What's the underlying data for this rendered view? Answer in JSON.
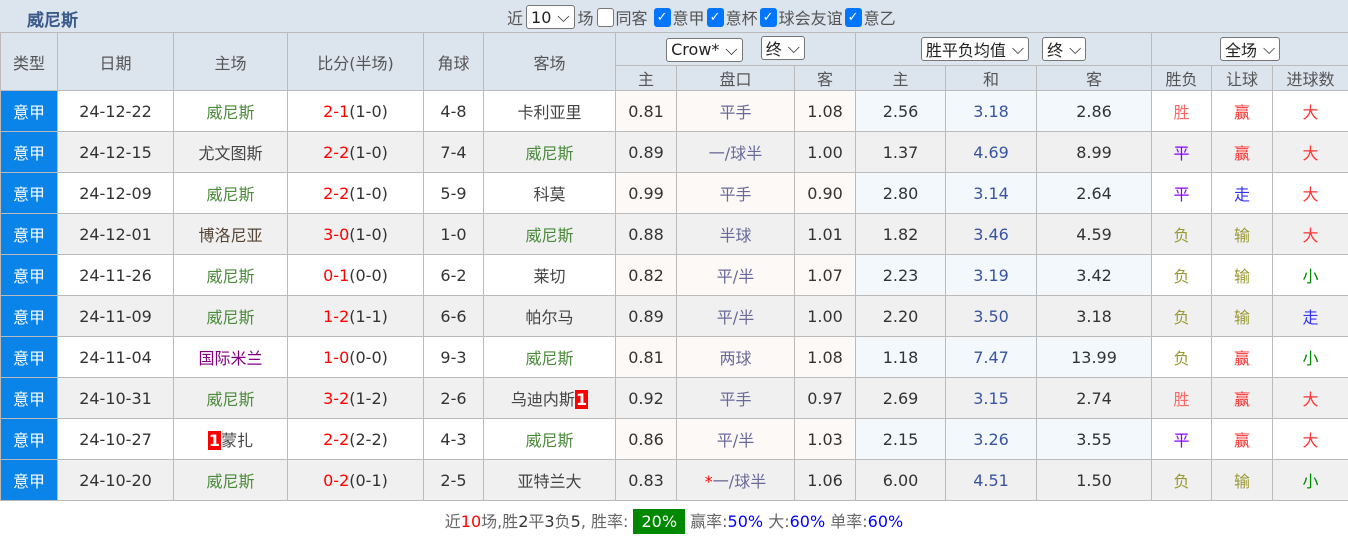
{
  "title": "威尼斯",
  "filters": {
    "near_label": "近",
    "count": "10",
    "count_suffix": "场",
    "items": [
      {
        "label": "同客",
        "checked": false
      },
      {
        "label": "意甲",
        "checked": true
      },
      {
        "label": "意杯",
        "checked": true
      },
      {
        "label": "球会友谊",
        "checked": true
      },
      {
        "label": "意乙",
        "checked": true
      }
    ]
  },
  "headers": {
    "type": "类型",
    "date": "日期",
    "home": "主场",
    "score": "比分(半场)",
    "corner": "角球",
    "away": "客场",
    "company": "Crow*",
    "company_stage": "终",
    "avg": "胜平负均值",
    "avg_stage": "终",
    "scope": "全场",
    "h_home": "主",
    "h_line": "盘口",
    "h_away": "客",
    "a_home": "主",
    "a_draw": "和",
    "a_away": "客",
    "res": "胜负",
    "hc": "让球",
    "ou": "进球数"
  },
  "colors": {
    "accent": "#0a84e8",
    "win": "#ff6666",
    "draw": "#8800ff",
    "lose": "#999933",
    "big": "#ff3333",
    "small": "#008800",
    "walk": "#3333ff"
  },
  "rows": [
    {
      "type": "意甲",
      "date": "24-12-22",
      "home": "威尼斯",
      "hcard": "",
      "score": "2-1",
      "half": "(1-0)",
      "corner": "4-8",
      "away": "卡利亚里",
      "acard": "",
      "oh": "0.81",
      "line": "平手",
      "star": "",
      "oa": "1.08",
      "ah": "2.56",
      "ad": "3.18",
      "aa": "2.86",
      "res": "胜",
      "hc": "赢",
      "ou": "大"
    },
    {
      "type": "意甲",
      "date": "24-12-15",
      "home": "尤文图斯",
      "hcard": "",
      "score": "2-2",
      "half": "(1-0)",
      "corner": "7-4",
      "away": "威尼斯",
      "acard": "",
      "oh": "0.89",
      "line": "一/球半",
      "star": "",
      "oa": "1.00",
      "ah": "1.37",
      "ad": "4.69",
      "aa": "8.99",
      "res": "平",
      "hc": "赢",
      "ou": "大"
    },
    {
      "type": "意甲",
      "date": "24-12-09",
      "home": "威尼斯",
      "hcard": "",
      "score": "2-2",
      "half": "(1-0)",
      "corner": "5-9",
      "away": "科莫",
      "acard": "",
      "oh": "0.99",
      "line": "平手",
      "star": "",
      "oa": "0.90",
      "ah": "2.80",
      "ad": "3.14",
      "aa": "2.64",
      "res": "平",
      "hc": "走",
      "ou": "大"
    },
    {
      "type": "意甲",
      "date": "24-12-01",
      "home": "博洛尼亚",
      "hcard": "",
      "score": "3-0",
      "half": "(1-0)",
      "corner": "1-0",
      "away": "威尼斯",
      "acard": "",
      "oh": "0.88",
      "line": "半球",
      "star": "",
      "oa": "1.01",
      "ah": "1.82",
      "ad": "3.46",
      "aa": "4.59",
      "res": "负",
      "hc": "输",
      "ou": "大"
    },
    {
      "type": "意甲",
      "date": "24-11-26",
      "home": "威尼斯",
      "hcard": "",
      "score": "0-1",
      "half": "(0-0)",
      "corner": "6-2",
      "away": "莱切",
      "acard": "",
      "oh": "0.82",
      "line": "平/半",
      "star": "",
      "oa": "1.07",
      "ah": "2.23",
      "ad": "3.19",
      "aa": "3.42",
      "res": "负",
      "hc": "输",
      "ou": "小"
    },
    {
      "type": "意甲",
      "date": "24-11-09",
      "home": "威尼斯",
      "hcard": "",
      "score": "1-2",
      "half": "(1-1)",
      "corner": "6-6",
      "away": "帕尔马",
      "acard": "",
      "oh": "0.89",
      "line": "平/半",
      "star": "",
      "oa": "1.00",
      "ah": "2.20",
      "ad": "3.50",
      "aa": "3.18",
      "res": "负",
      "hc": "输",
      "ou": "走"
    },
    {
      "type": "意甲",
      "date": "24-11-04",
      "home": "国际米兰",
      "hcard": "",
      "score": "1-0",
      "half": "(0-0)",
      "corner": "9-3",
      "away": "威尼斯",
      "acard": "",
      "oh": "0.81",
      "line": "两球",
      "star": "",
      "oa": "1.08",
      "ah": "1.18",
      "ad": "7.47",
      "aa": "13.99",
      "res": "负",
      "hc": "赢",
      "ou": "小"
    },
    {
      "type": "意甲",
      "date": "24-10-31",
      "home": "威尼斯",
      "hcard": "",
      "score": "3-2",
      "half": "(1-2)",
      "corner": "2-6",
      "away": "乌迪内斯",
      "acard": "1",
      "oh": "0.92",
      "line": "平手",
      "star": "",
      "oa": "0.97",
      "ah": "2.69",
      "ad": "3.15",
      "aa": "2.74",
      "res": "胜",
      "hc": "赢",
      "ou": "大"
    },
    {
      "type": "意甲",
      "date": "24-10-27",
      "home": "蒙扎",
      "hcard": "1",
      "score": "2-2",
      "half": "(2-2)",
      "corner": "4-3",
      "away": "威尼斯",
      "acard": "",
      "oh": "0.86",
      "line": "平/半",
      "star": "",
      "oa": "1.03",
      "ah": "2.15",
      "ad": "3.26",
      "aa": "3.55",
      "res": "平",
      "hc": "赢",
      "ou": "大"
    },
    {
      "type": "意甲",
      "date": "24-10-20",
      "home": "威尼斯",
      "hcard": "",
      "score": "0-2",
      "half": "(0-1)",
      "corner": "2-5",
      "away": "亚特兰大",
      "acard": "",
      "oh": "0.83",
      "line": "一/球半",
      "star": "*",
      "oa": "1.06",
      "ah": "6.00",
      "ad": "4.51",
      "aa": "1.50",
      "res": "负",
      "hc": "输",
      "ou": "小"
    }
  ],
  "summary": {
    "p1": "近",
    "n": "10",
    "p2": "场,胜",
    "w": "2",
    "p3": "平",
    "d": "3",
    "p4": "负",
    "l": "5",
    "p5": ", 胜率:",
    "win_rate": "20%",
    "p6": "赢率:",
    "hc_rate": "50%",
    "p7": "大:",
    "big_rate": "60%",
    "p8": "单率:",
    "odd_rate": "60%"
  }
}
